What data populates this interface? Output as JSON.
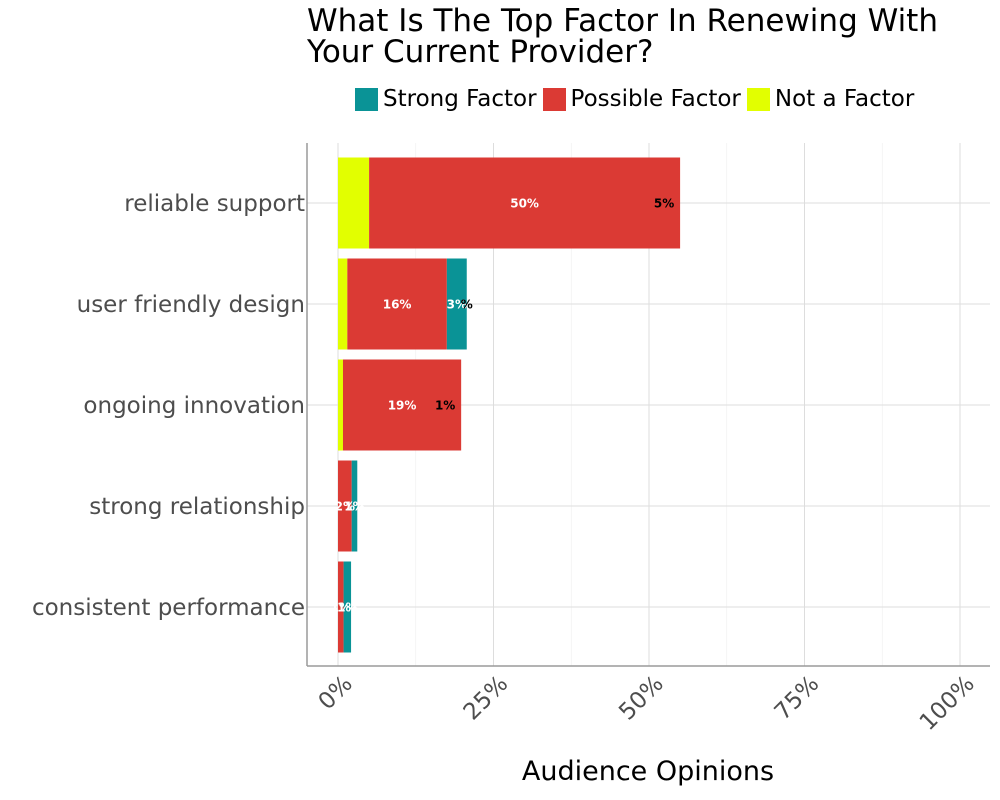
{
  "chart_data": {
    "type": "bar",
    "orientation": "horizontal",
    "stacked": true,
    "title_lines": [
      "What Is The Top Factor In Renewing With",
      "Your Current Provider?"
    ],
    "xlabel": "Audience Opinions",
    "ylabel": "",
    "xlim": [
      0,
      100
    ],
    "x_ticks": [
      "0%",
      "25%",
      "50%",
      "75%",
      "100%"
    ],
    "grid": true,
    "legend_position": "top",
    "categories": [
      "reliable support",
      "user friendly design",
      "ongoing innovation",
      "strong relationship",
      "consistent performance"
    ],
    "series": [
      {
        "name": "Not a Factor",
        "color": "#e2ff00",
        "label_color": "#000000",
        "values": [
          5,
          1.5,
          0.8,
          0,
          0
        ],
        "labels": [
          "5%",
          "",
          "1%",
          "",
          ""
        ]
      },
      {
        "name": "Possible Factor",
        "color": "#db3a34",
        "label_color": "#ffffff",
        "values": [
          50,
          16,
          19,
          2.2,
          0.9
        ],
        "labels": [
          "50%",
          "16%",
          "19%",
          "2%",
          "1%"
        ]
      },
      {
        "name": "Strong Factor",
        "color": "#0a9396",
        "label_color": "#ffffff",
        "values": [
          0,
          3.2,
          0,
          0.9,
          1.2
        ],
        "labels": [
          "",
          "3%",
          "",
          "1%",
          "1%"
        ]
      }
    ],
    "extra_labels": [
      {
        "category": "user friendly design",
        "text": "%",
        "color": "#000000"
      }
    ]
  },
  "legend": [
    {
      "name": "Strong Factor",
      "color": "#0a9396"
    },
    {
      "name": "Possible Factor",
      "color": "#db3a34"
    },
    {
      "name": "Not a Factor",
      "color": "#e2ff00"
    }
  ]
}
